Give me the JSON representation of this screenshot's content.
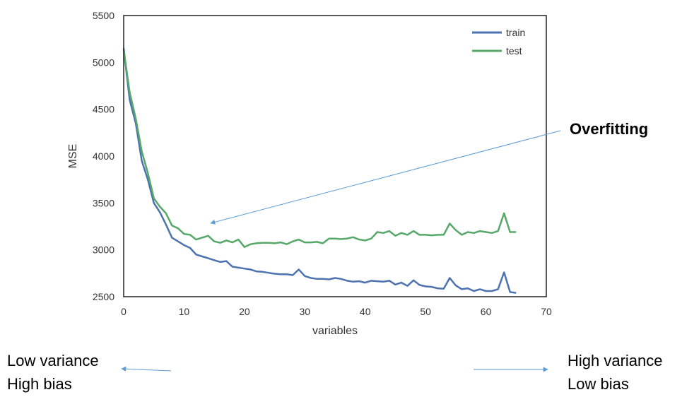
{
  "chart_data": {
    "type": "line",
    "xlabel": "variables",
    "ylabel": "MSE",
    "xlim": [
      0,
      70
    ],
    "ylim": [
      2500,
      5500
    ],
    "xticks": [
      0,
      10,
      20,
      30,
      40,
      50,
      60,
      70
    ],
    "yticks": [
      2500,
      3000,
      3500,
      4000,
      4500,
      5000,
      5500
    ],
    "grid": false,
    "legend_position": "top-right",
    "series": [
      {
        "name": "train",
        "color": "#4c72b0",
        "x": [
          0,
          1,
          2,
          3,
          4,
          5,
          6,
          7,
          8,
          9,
          10,
          11,
          12,
          13,
          14,
          15,
          16,
          17,
          18,
          19,
          20,
          21,
          22,
          23,
          24,
          25,
          26,
          27,
          28,
          29,
          30,
          31,
          32,
          33,
          34,
          35,
          36,
          37,
          38,
          39,
          40,
          41,
          42,
          43,
          44,
          45,
          46,
          47,
          48,
          49,
          50,
          51,
          52,
          53,
          54,
          55,
          56,
          57,
          58,
          59,
          60,
          61,
          62,
          63,
          64,
          65
        ],
        "values": [
          5150,
          4600,
          4350,
          3950,
          3750,
          3500,
          3400,
          3270,
          3130,
          3090,
          3050,
          3020,
          2950,
          2930,
          2910,
          2890,
          2870,
          2880,
          2820,
          2810,
          2800,
          2790,
          2770,
          2765,
          2755,
          2745,
          2740,
          2740,
          2730,
          2790,
          2720,
          2700,
          2690,
          2690,
          2685,
          2700,
          2690,
          2670,
          2660,
          2665,
          2650,
          2670,
          2665,
          2660,
          2670,
          2630,
          2650,
          2615,
          2675,
          2625,
          2610,
          2605,
          2590,
          2585,
          2700,
          2620,
          2580,
          2590,
          2560,
          2580,
          2560,
          2560,
          2580,
          2760,
          2550,
          2540
        ]
      },
      {
        "name": "test",
        "color": "#55a868",
        "x": [
          0,
          1,
          2,
          3,
          4,
          5,
          6,
          7,
          8,
          9,
          10,
          11,
          12,
          13,
          14,
          15,
          16,
          17,
          18,
          19,
          20,
          21,
          22,
          23,
          24,
          25,
          26,
          27,
          28,
          29,
          30,
          31,
          32,
          33,
          34,
          35,
          36,
          37,
          38,
          39,
          40,
          41,
          42,
          43,
          44,
          45,
          46,
          47,
          48,
          49,
          50,
          51,
          52,
          53,
          54,
          55,
          56,
          57,
          58,
          59,
          60,
          61,
          62,
          63,
          64,
          65
        ],
        "values": [
          5130,
          4680,
          4400,
          4050,
          3820,
          3550,
          3460,
          3390,
          3260,
          3230,
          3170,
          3160,
          3110,
          3130,
          3150,
          3090,
          3075,
          3100,
          3080,
          3110,
          3030,
          3060,
          3070,
          3075,
          3075,
          3070,
          3080,
          3060,
          3090,
          3110,
          3080,
          3080,
          3085,
          3070,
          3120,
          3120,
          3115,
          3120,
          3135,
          3110,
          3100,
          3120,
          3190,
          3180,
          3200,
          3150,
          3180,
          3160,
          3200,
          3160,
          3160,
          3155,
          3160,
          3160,
          3280,
          3210,
          3160,
          3190,
          3180,
          3200,
          3190,
          3180,
          3200,
          3390,
          3190,
          3190
        ]
      }
    ]
  },
  "annotations": {
    "overfitting": "Overfitting",
    "left_line1": "Low variance",
    "left_line2": "High bias",
    "right_line1": "High variance",
    "right_line2": "Low bias",
    "arrow_color": "#5b9bd5"
  }
}
